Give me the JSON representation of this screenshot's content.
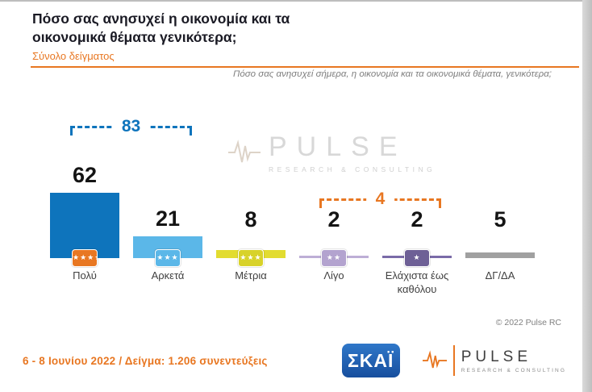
{
  "header": {
    "title_line1": "Πόσο σας ανησυχεί η οικονομία και τα",
    "title_line2": "οικονομικά θέματα γενικότερα;",
    "subtitle": "Σύνολο δείγματος"
  },
  "question_note": "Πόσο σας ανησυχεί σήμερα, η οικονομία και τα οικονομικά θέματα, γενικότερα;",
  "watermark": {
    "name": "PULSE",
    "sub": "RESEARCH & CONSULTING",
    "icon": "waveform-icon"
  },
  "chart_data": {
    "type": "bar",
    "title": "Πόσο σας ανησυχεί η οικονομία και τα οικονομικά θέματα γενικότερα;",
    "subtitle": "Σύνολο δείγματος",
    "categories": [
      "Πολύ",
      "Αρκετά",
      "Μέτρια",
      "Λίγο",
      "Ελάχιστα έως καθόλου",
      "ΔΓ/ΔΑ"
    ],
    "values": [
      62,
      21,
      8,
      2,
      2,
      5
    ],
    "ylim": [
      0,
      100
    ],
    "grid": false,
    "legend": false,
    "bar_colors": [
      "#0E74BC",
      "#5BB7E8",
      "#E2DC30",
      "#BDAED6",
      "#7A6BA8",
      "#A0A0A0"
    ],
    "badges": [
      {
        "color": "#E87722",
        "stars": "★★★★"
      },
      {
        "color": "#5BB7E8",
        "stars": "★★★"
      },
      {
        "color": "#D8D22A",
        "stars": "★★★"
      },
      {
        "color": "#B3A3CF",
        "stars": "★★"
      },
      {
        "color": "#6E6096",
        "stars": "★"
      },
      null
    ],
    "groups": [
      {
        "label": "83",
        "sum_of": [
          "Πολύ",
          "Αρκετά"
        ],
        "from": 0,
        "to": 1,
        "color": "#0E74BC",
        "top": 36
      },
      {
        "label": "4",
        "sum_of": [
          "Λίγο",
          "Ελάχιστα έως καθόλου"
        ],
        "from": 3,
        "to": 4,
        "color": "#E87722",
        "top": 126
      }
    ]
  },
  "copyright": "© 2022 Pulse RC",
  "footer": {
    "left": "6 - 8 Ιουνίου 2022 / Δείγμα: 1.206 συνεντεύξεις",
    "skai_logo": "ΣΚΑΪ",
    "pulse_logo": {
      "name": "PULSE",
      "sub": "RESEARCH & CONSULTING",
      "icon": "waveform-icon"
    }
  },
  "colors": {
    "accent_orange": "#E87722",
    "title": "#1A1A24",
    "note_gray": "#7F7F7F",
    "skai_blue": "#1C5FA8"
  }
}
